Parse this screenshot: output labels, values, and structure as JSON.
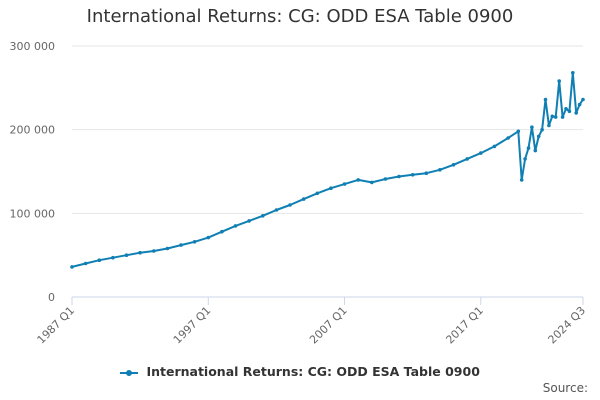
{
  "colors": {
    "series": "#0f7fb4",
    "grid": "#e6e6e6",
    "axis": "#ccd6eb",
    "text": "#666666"
  },
  "source_label": "Source:",
  "chart_data": {
    "type": "line",
    "title": "International Returns: CG: ODD ESA Table 0900",
    "xlabel": "",
    "ylabel": "",
    "ylim": [
      0,
      300000
    ],
    "yticks": [
      0,
      100000,
      200000,
      300000
    ],
    "ytick_labels": [
      "0",
      "100 000",
      "200 000",
      "300 000"
    ],
    "xtick_labels": [
      "1987 Q1",
      "1997 Q1",
      "2007 Q1",
      "2017 Q1",
      "2024 Q3"
    ],
    "grid": true,
    "legend": "bottom",
    "series": [
      {
        "name": "International Returns: CG: ODD ESA Table 0900",
        "x": [
          "1987 Q1",
          "1988 Q1",
          "1989 Q1",
          "1990 Q1",
          "1991 Q1",
          "1992 Q1",
          "1993 Q1",
          "1994 Q1",
          "1995 Q1",
          "1996 Q1",
          "1997 Q1",
          "1998 Q1",
          "1999 Q1",
          "2000 Q1",
          "2001 Q1",
          "2002 Q1",
          "2003 Q1",
          "2004 Q1",
          "2005 Q1",
          "2006 Q1",
          "2007 Q1",
          "2008 Q1",
          "2009 Q1",
          "2010 Q1",
          "2011 Q1",
          "2012 Q1",
          "2013 Q1",
          "2014 Q1",
          "2015 Q1",
          "2016 Q1",
          "2017 Q1",
          "2018 Q1",
          "2019 Q1",
          "2019 Q4",
          "2020 Q1",
          "2020 Q2",
          "2020 Q3",
          "2020 Q4",
          "2021 Q1",
          "2021 Q2",
          "2021 Q3",
          "2021 Q4",
          "2022 Q1",
          "2022 Q2",
          "2022 Q3",
          "2022 Q4",
          "2023 Q1",
          "2023 Q2",
          "2023 Q3",
          "2023 Q4",
          "2024 Q1",
          "2024 Q2",
          "2024 Q3"
        ],
        "values": [
          36000,
          40000,
          44000,
          47000,
          50000,
          53000,
          55000,
          58000,
          62000,
          66000,
          71000,
          78000,
          85000,
          91000,
          97000,
          104000,
          110000,
          117000,
          124000,
          130000,
          135000,
          140000,
          137000,
          141000,
          144000,
          146000,
          148000,
          152000,
          158000,
          165000,
          172000,
          180000,
          190000,
          198000,
          140000,
          165000,
          178000,
          203000,
          175000,
          192000,
          200000,
          236000,
          205000,
          216000,
          215000,
          258000,
          215000,
          225000,
          222000,
          268000,
          220000,
          230000,
          236000
        ]
      }
    ]
  }
}
